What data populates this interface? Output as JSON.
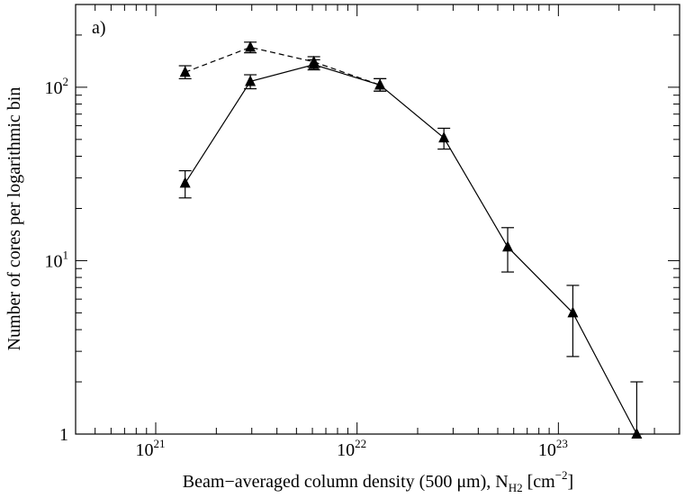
{
  "chart_data": {
    "type": "line",
    "panel_label": "a)",
    "xlabel": "Beam−averaged column density (500 μm), N",
    "xlabel_sub": "H2",
    "xlabel_unit_open": " [cm",
    "xlabel_unit_sup": "−2",
    "xlabel_unit_close": "]",
    "ylabel": "Number of cores per logarithmic bin",
    "x_scale": "log",
    "y_scale": "log",
    "xlim": [
      4e+20,
      4e+23
    ],
    "ylim": [
      1,
      300
    ],
    "x_tick_labels": [
      {
        "base": "10",
        "exp": "21",
        "value": 1e+21
      },
      {
        "base": "10",
        "exp": "22",
        "value": 1e+22
      },
      {
        "base": "10",
        "exp": "23",
        "value": 1e+23
      }
    ],
    "y_tick_labels": [
      {
        "base": "10",
        "exp": "2",
        "value": 100
      },
      {
        "base": "10",
        "exp": "1",
        "value": 10
      },
      {
        "base": "1",
        "exp": "",
        "value": 1
      }
    ],
    "series": [
      {
        "name": "solid",
        "line_style": "solid",
        "x": [
          1.4e+21,
          2.95e+21,
          6.1e+21,
          1.3e+22,
          2.7e+22,
          5.6e+22,
          1.18e+23,
          2.45e+23
        ],
        "y": [
          28,
          108,
          135,
          103,
          51,
          12,
          5,
          1
        ],
        "err_low": [
          23,
          98,
          126,
          95,
          44,
          8.6,
          2.8,
          1
        ],
        "err_high": [
          33,
          118,
          144,
          112,
          58,
          15.5,
          7.2,
          2.0
        ]
      },
      {
        "name": "dashed",
        "line_style": "dashed",
        "x": [
          1.4e+21,
          2.95e+21,
          6.1e+21,
          1.3e+22
        ],
        "y": [
          122,
          170,
          140,
          103
        ],
        "err_low": [
          112,
          158,
          130,
          95
        ],
        "err_high": [
          133,
          182,
          150,
          112
        ]
      }
    ]
  }
}
